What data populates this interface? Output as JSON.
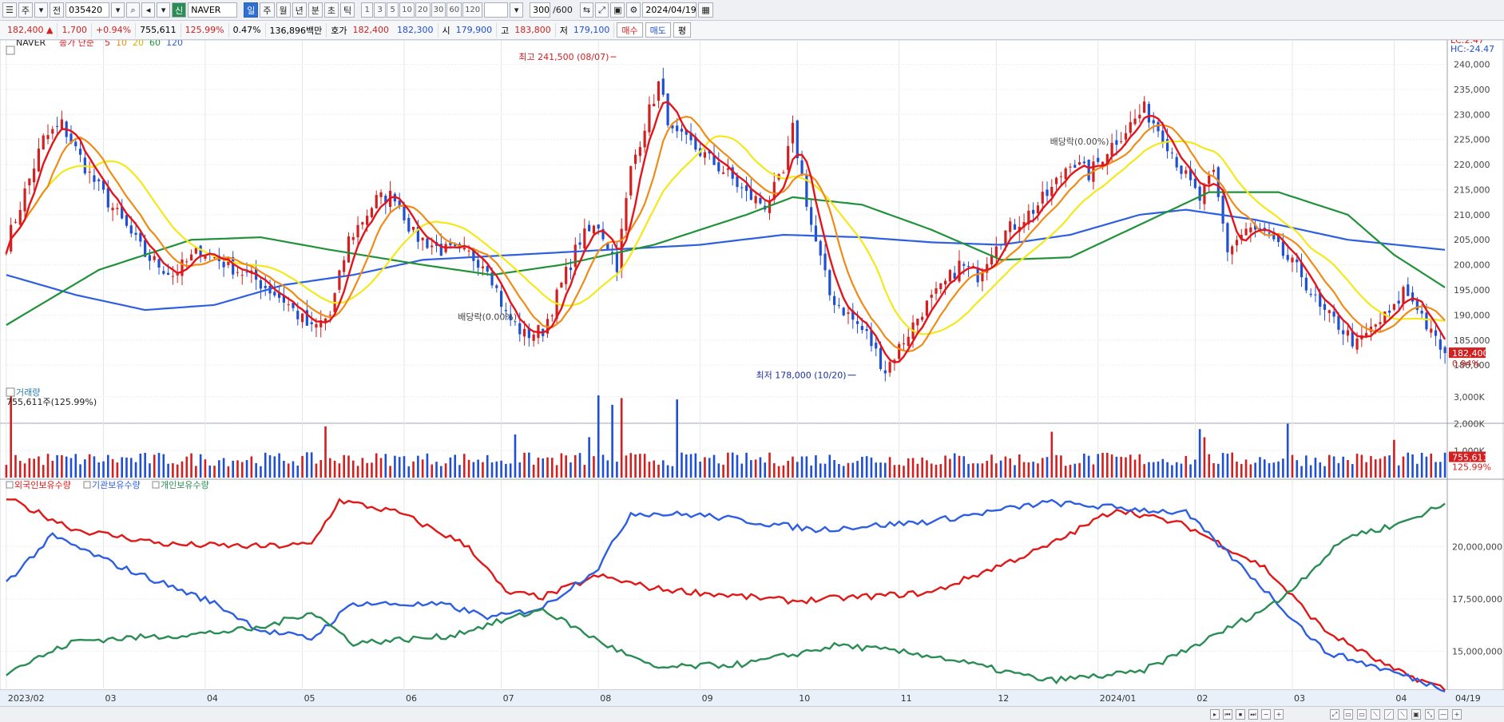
{
  "toolbar": {
    "period_prefix": "주",
    "code": "035420",
    "name": "NAVER",
    "periods": [
      "일",
      "주",
      "월",
      "년",
      "분",
      "초",
      "틱"
    ],
    "active_period": "일",
    "intervals": [
      "1",
      "3",
      "5",
      "10",
      "20",
      "30",
      "60",
      "120"
    ],
    "count": "300",
    "count_max": "/600",
    "date": "2024/04/19"
  },
  "quote": {
    "price": "182,400",
    "change": "1,700",
    "change_pct": "+0.94%",
    "volume": "755,611",
    "volume_ratio": "125.99%",
    "turnover_pct": "0.47%",
    "amount": "136,896백만",
    "ask_label": "호가",
    "ask": "182,400",
    "bid": "182,300",
    "open_label": "시",
    "open": "179,900",
    "high_label": "고",
    "high": "183,800",
    "low_label": "저",
    "low": "179,100",
    "buy_label": "매수",
    "sell_label": "매도",
    "eval_label": "평"
  },
  "colors": {
    "up": "#d21f1f",
    "down": "#1f4fd2",
    "ma5": "#e5141b",
    "ma10": "#ef8c17",
    "ma20": "#f5e81a",
    "ma60": "#21913a",
    "ma120": "#2e5fe0",
    "foreign": "#e01818",
    "institution": "#2e5fe0",
    "individual": "#2a8d55"
  },
  "chart_data": [
    {
      "type": "line",
      "subtype": "candlestick",
      "title": "NAVER",
      "legend": {
        "label": "종가 단순",
        "periods": [
          "5",
          "10",
          "20",
          "60",
          "120"
        ]
      },
      "x_ticks": [
        "2023/02",
        "03",
        "04",
        "05",
        "06",
        "07",
        "08",
        "09",
        "10",
        "11",
        "12",
        "2024/01",
        "02",
        "03",
        "04",
        "04/19"
      ],
      "y_ticks": [
        "180,000",
        "185,000",
        "190,000",
        "195,000",
        "200,000",
        "205,000",
        "210,000",
        "215,000",
        "220,000",
        "225,000",
        "230,000",
        "235,000",
        "240,000"
      ],
      "ylim": [
        177000,
        242000
      ],
      "scale_top_labels": [
        "LC:2.47",
        "HC:-24.47"
      ],
      "last_price_label": "182,400",
      "last_change_label": "0.94%",
      "annotations": [
        {
          "text": "최고 241,500 (08/07)",
          "x": "2023-08-07",
          "y": 241500
        },
        {
          "text": "최저 178,000 (10/20)",
          "x": "2023-10-20",
          "y": 178000
        },
        {
          "text": "배당락(0.00%)",
          "x": "2023-06-28",
          "y": 189000
        },
        {
          "text": "배당락(0.00%)",
          "x": "2023-12-27",
          "y": 224000
        }
      ],
      "anchors": [
        [
          0,
          204000
        ],
        [
          8,
          225000
        ],
        [
          12,
          228000
        ],
        [
          18,
          218000
        ],
        [
          24,
          210000
        ],
        [
          30,
          202000
        ],
        [
          36,
          198000
        ],
        [
          42,
          203000
        ],
        [
          48,
          200000
        ],
        [
          54,
          197000
        ],
        [
          60,
          193000
        ],
        [
          66,
          187000
        ],
        [
          70,
          190000
        ],
        [
          74,
          205000
        ],
        [
          80,
          213000
        ],
        [
          84,
          214000
        ],
        [
          88,
          206000
        ],
        [
          94,
          203000
        ],
        [
          100,
          202000
        ],
        [
          104,
          200000
        ],
        [
          108,
          190000
        ],
        [
          112,
          186000
        ],
        [
          116,
          187000
        ],
        [
          120,
          196000
        ],
        [
          124,
          205000
        ],
        [
          128,
          208000
        ],
        [
          132,
          200000
        ],
        [
          135,
          219000
        ],
        [
          138,
          228000
        ],
        [
          141,
          236000
        ],
        [
          144,
          226000
        ],
        [
          148,
          224000
        ],
        [
          152,
          221000
        ],
        [
          156,
          218000
        ],
        [
          160,
          214000
        ],
        [
          164,
          212000
        ],
        [
          168,
          218000
        ],
        [
          170,
          227000
        ],
        [
          174,
          208000
        ],
        [
          178,
          194000
        ],
        [
          182,
          190000
        ],
        [
          186,
          186000
        ],
        [
          190,
          179000
        ],
        [
          194,
          185000
        ],
        [
          198,
          191000
        ],
        [
          202,
          195000
        ],
        [
          206,
          200000
        ],
        [
          210,
          198000
        ],
        [
          214,
          205000
        ],
        [
          218,
          208000
        ],
        [
          222,
          211000
        ],
        [
          226,
          215000
        ],
        [
          230,
          221000
        ],
        [
          234,
          218000
        ],
        [
          238,
          223000
        ],
        [
          242,
          227000
        ],
        [
          246,
          231000
        ],
        [
          250,
          226000
        ],
        [
          254,
          219000
        ],
        [
          258,
          213000
        ],
        [
          261,
          218000
        ],
        [
          264,
          203000
        ],
        [
          268,
          207000
        ],
        [
          272,
          206000
        ],
        [
          276,
          202000
        ],
        [
          280,
          198000
        ],
        [
          284,
          191000
        ],
        [
          288,
          188000
        ],
        [
          292,
          184000
        ],
        [
          296,
          188000
        ],
        [
          300,
          191000
        ],
        [
          302,
          195000
        ],
        [
          305,
          192000
        ],
        [
          308,
          186000
        ],
        [
          311,
          182400
        ]
      ],
      "ma60": [
        [
          0,
          188000
        ],
        [
          20,
          199000
        ],
        [
          40,
          205000
        ],
        [
          55,
          205500
        ],
        [
          70,
          203000
        ],
        [
          90,
          200000
        ],
        [
          105,
          198000
        ],
        [
          120,
          200000
        ],
        [
          140,
          204000
        ],
        [
          160,
          210000
        ],
        [
          170,
          213500
        ],
        [
          185,
          212000
        ],
        [
          200,
          207000
        ],
        [
          215,
          201000
        ],
        [
          230,
          201500
        ],
        [
          245,
          208000
        ],
        [
          260,
          214500
        ],
        [
          275,
          214500
        ],
        [
          290,
          210000
        ],
        [
          300,
          202000
        ],
        [
          311,
          195500
        ]
      ],
      "ma120": [
        [
          0,
          198000
        ],
        [
          15,
          194000
        ],
        [
          30,
          191000
        ],
        [
          45,
          192000
        ],
        [
          60,
          196000
        ],
        [
          75,
          198000
        ],
        [
          90,
          201000
        ],
        [
          110,
          202000
        ],
        [
          130,
          203000
        ],
        [
          150,
          204000
        ],
        [
          168,
          206000
        ],
        [
          185,
          205500
        ],
        [
          200,
          204500
        ],
        [
          215,
          204000
        ],
        [
          230,
          206000
        ],
        [
          245,
          210000
        ],
        [
          255,
          211000
        ],
        [
          270,
          209000
        ],
        [
          290,
          205000
        ],
        [
          311,
          203000
        ]
      ],
      "x_label_positions": [
        0,
        21,
        43,
        64,
        86,
        107,
        128,
        150,
        171,
        193,
        214,
        236,
        257,
        278,
        300
      ]
    },
    {
      "type": "bar",
      "title": "거래량",
      "header_value": "755,611주(125.99%)",
      "y_ticks": [
        "1,000K",
        "2,000K",
        "3,000K"
      ],
      "ylim": [
        0,
        3200000
      ],
      "last_value_label": "755,611",
      "last_ratio_label": "125.99%",
      "spikes": [
        {
          "i": 1,
          "v": 3100000
        },
        {
          "i": 69,
          "v": 1900000
        },
        {
          "i": 110,
          "v": 1600000
        },
        {
          "i": 126,
          "v": 1500000
        },
        {
          "i": 128,
          "v": 3050000
        },
        {
          "i": 131,
          "v": 2700000
        },
        {
          "i": 133,
          "v": 2950000
        },
        {
          "i": 145,
          "v": 2900000
        },
        {
          "i": 226,
          "v": 1700000
        },
        {
          "i": 258,
          "v": 1800000
        },
        {
          "i": 259,
          "v": 1500000
        },
        {
          "i": 277,
          "v": 2000000
        },
        {
          "i": 300,
          "v": 1400000
        }
      ]
    },
    {
      "type": "line",
      "title": "보유수량",
      "series": [
        {
          "name": "외국인보유수량",
          "color": "#e01818",
          "points": [
            [
              0,
              22300000
            ],
            [
              15,
              20800000
            ],
            [
              35,
              20100000
            ],
            [
              55,
              20000000
            ],
            [
              66,
              20100000
            ],
            [
              72,
              22200000
            ],
            [
              85,
              21600000
            ],
            [
              100,
              20000000
            ],
            [
              108,
              17800000
            ],
            [
              116,
              17600000
            ],
            [
              128,
              18600000
            ],
            [
              140,
              18000000
            ],
            [
              170,
              17400000
            ],
            [
              200,
              17800000
            ],
            [
              225,
              20000000
            ],
            [
              240,
              21800000
            ],
            [
              255,
              21000000
            ],
            [
              272,
              19000000
            ],
            [
              285,
              16000000
            ],
            [
              300,
              14100000
            ],
            [
              311,
              13200000
            ]
          ]
        },
        {
          "name": "기관보유수량",
          "color": "#2e5fe0",
          "points": [
            [
              0,
              18300000
            ],
            [
              10,
              20500000
            ],
            [
              25,
              19000000
            ],
            [
              45,
              17300000
            ],
            [
              55,
              16000000
            ],
            [
              66,
              15600000
            ],
            [
              75,
              17300000
            ],
            [
              95,
              17200000
            ],
            [
              105,
              16600000
            ],
            [
              116,
              17100000
            ],
            [
              128,
              19000000
            ],
            [
              135,
              21600000
            ],
            [
              150,
              21500000
            ],
            [
              175,
              20800000
            ],
            [
              200,
              21200000
            ],
            [
              225,
              22100000
            ],
            [
              255,
              21600000
            ],
            [
              270,
              18400000
            ],
            [
              285,
              15000000
            ],
            [
              300,
              14000000
            ],
            [
              311,
              13200000
            ]
          ]
        },
        {
          "name": "개인보유수량",
          "color": "#2a8d55",
          "points": [
            [
              0,
              14000000
            ],
            [
              15,
              15500000
            ],
            [
              40,
              15800000
            ],
            [
              55,
              16100000
            ],
            [
              66,
              16900000
            ],
            [
              75,
              15400000
            ],
            [
              95,
              15700000
            ],
            [
              116,
              17000000
            ],
            [
              128,
              15500000
            ],
            [
              140,
              14200000
            ],
            [
              160,
              14400000
            ],
            [
              180,
              15300000
            ],
            [
              200,
              14800000
            ],
            [
              225,
              13600000
            ],
            [
              245,
              14000000
            ],
            [
              260,
              15600000
            ],
            [
              275,
              17400000
            ],
            [
              290,
              20500000
            ],
            [
              300,
              21000000
            ],
            [
              311,
              22000000
            ]
          ]
        }
      ],
      "y_ticks": [
        "15,000,000",
        "17,500,000",
        "20,000,000"
      ],
      "ylim": [
        13000000,
        22600000
      ]
    }
  ]
}
